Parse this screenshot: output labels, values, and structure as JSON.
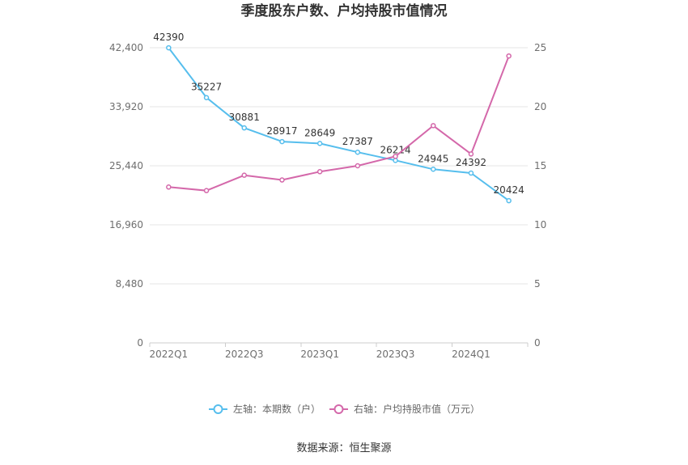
{
  "chart_data": {
    "type": "line",
    "title": "季度股东户数、户均持股市值情况",
    "categories": [
      "2022Q1",
      "",
      "2022Q3",
      "",
      "2023Q1",
      "",
      "2023Q3",
      "",
      "2024Q1",
      ""
    ],
    "y_left": {
      "ylim": [
        0,
        42400
      ],
      "ticks": [
        0,
        8480,
        16960,
        25440,
        33920,
        42400
      ],
      "tick_labels": [
        "0",
        "8,480",
        "16,960",
        "25,440",
        "33,920",
        "42,400"
      ]
    },
    "y_right": {
      "ylim": [
        0,
        25
      ],
      "ticks": [
        0,
        5,
        10,
        15,
        20,
        25
      ],
      "tick_labels": [
        "0",
        "5",
        "10",
        "15",
        "20",
        "25"
      ]
    },
    "series": [
      {
        "name": "左轴：本期数（户）",
        "y_axis_index": 0,
        "color": "#56beed",
        "data_labels": true,
        "values": [
          42390,
          35227,
          30881,
          28917,
          28649,
          27387,
          26214,
          24945,
          24392,
          20424
        ]
      },
      {
        "name": "右轴：户均持股市值（万元）",
        "y_axis_index": 1,
        "color": "#d468aa",
        "data_labels": false,
        "values": [
          13.2,
          12.9,
          14.2,
          13.8,
          14.5,
          15.0,
          15.8,
          18.4,
          16.0,
          24.3
        ]
      }
    ],
    "grid": true,
    "legend": "bottom"
  },
  "footer": {
    "source": "数据来源：恒生聚源"
  }
}
